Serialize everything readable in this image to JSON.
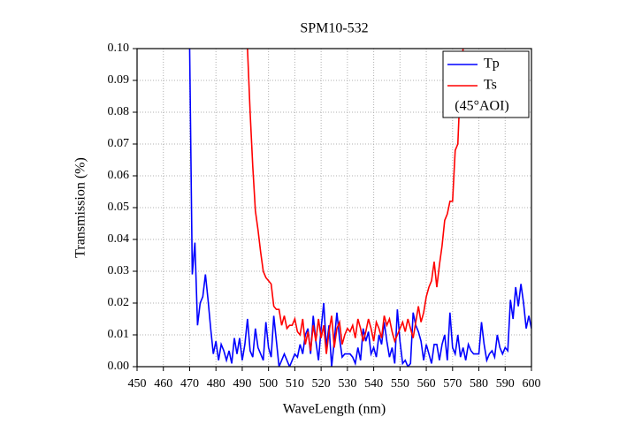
{
  "chart_data": {
    "type": "line",
    "title": "SPM10-532",
    "x_label": "WaveLength (nm)",
    "y_label": "Transmission (%)",
    "annotation": "(45°AOI)",
    "xlim": [
      450,
      600
    ],
    "xticks": [
      450,
      460,
      470,
      480,
      490,
      500,
      510,
      520,
      530,
      540,
      550,
      560,
      570,
      580,
      590,
      600
    ],
    "ylim": [
      0,
      0.1
    ],
    "yticks": [
      {
        "value": 0,
        "label": "0.00"
      },
      {
        "value": 0.01,
        "label": "0.01"
      },
      {
        "value": 0.02,
        "label": "0.02"
      },
      {
        "value": 0.03,
        "label": "0.03"
      },
      {
        "value": 0.04,
        "label": "0.04"
      },
      {
        "value": 0.05,
        "label": "0.05"
      },
      {
        "value": 0.06,
        "label": "0.06"
      },
      {
        "value": 0.07,
        "label": "0.07"
      },
      {
        "value": 0.08,
        "label": "0.08"
      },
      {
        "value": 0.09,
        "label": "0.09"
      },
      {
        "value": 0.1,
        "label": "0.10"
      }
    ],
    "grid": true,
    "legend": "top-right",
    "series": [
      {
        "name": "Tp",
        "color": "#0000ff",
        "x": [
          470,
          471,
          472,
          473,
          474,
          475,
          476,
          477,
          478,
          479,
          480,
          481,
          482,
          483,
          484,
          485,
          486,
          487,
          488,
          489,
          490,
          491,
          492,
          493,
          494,
          495,
          496,
          497,
          498,
          499,
          500,
          501,
          502,
          503,
          504,
          505,
          506,
          507,
          508,
          509,
          510,
          511,
          512,
          513,
          514,
          515,
          516,
          517,
          518,
          519,
          520,
          521,
          522,
          523,
          524,
          525,
          526,
          527,
          528,
          529,
          530,
          531,
          532,
          533,
          534,
          535,
          536,
          537,
          538,
          539,
          540,
          541,
          542,
          543,
          544,
          545,
          546,
          547,
          548,
          549,
          550,
          551,
          552,
          553,
          554,
          555,
          556,
          557,
          558,
          559,
          560,
          561,
          562,
          563,
          564,
          565,
          566,
          567,
          568,
          569,
          570,
          571,
          572,
          573,
          574,
          575,
          576,
          577,
          578,
          579,
          580,
          581,
          582,
          583,
          584,
          585,
          586,
          587,
          588,
          589,
          590,
          591,
          592,
          593,
          594,
          595,
          596,
          597,
          598,
          599,
          600
        ],
        "values": [
          0.1,
          0.029,
          0.039,
          0.013,
          0.02,
          0.022,
          0.029,
          0.021,
          0.012,
          0.004,
          0.008,
          0.002,
          0.007,
          0.005,
          0.002,
          0.005,
          0.001,
          0.009,
          0.004,
          0.009,
          0.002,
          0.007,
          0.015,
          0.005,
          0.003,
          0.012,
          0.006,
          0.004,
          0.002,
          0.014,
          0.006,
          0.003,
          0.016,
          0.008,
          0,
          0.002,
          0.004,
          0.002,
          0,
          0.002,
          0.004,
          0.003,
          0.007,
          0.004,
          0.01,
          0.012,
          0.004,
          0.016,
          0.008,
          0.002,
          0.012,
          0.02,
          0.006,
          0.013,
          0,
          0.008,
          0.017,
          0.009,
          0.003,
          0.004,
          0.004,
          0.004,
          0.003,
          0.001,
          0.006,
          0.002,
          0.012,
          0.008,
          0.011,
          0.004,
          0.006,
          0.003,
          0.01,
          0.007,
          0.014,
          0.008,
          0.003,
          0.006,
          0.001,
          0.018,
          0.008,
          0.001,
          0.002,
          0,
          0.001,
          0.017,
          0.013,
          0.011,
          0.008,
          0.002,
          0.007,
          0.004,
          0.001,
          0.007,
          0.007,
          0.002,
          0.007,
          0.01,
          0.002,
          0.017,
          0.006,
          0.004,
          0.01,
          0.003,
          0.006,
          0.002,
          0.007,
          0.005,
          0.004,
          0.004,
          0.004,
          0.014,
          0.007,
          0.002,
          0.004,
          0.005,
          0.003,
          0.01,
          0.006,
          0.004,
          0.006,
          0.005,
          0.021,
          0.015,
          0.025,
          0.019,
          0.026,
          0.02,
          0.012,
          0.016,
          0.012
        ]
      },
      {
        "name": "Ts",
        "color": "#ff0000",
        "x": [
          492,
          493,
          494,
          495,
          496,
          497,
          498,
          499,
          500,
          501,
          502,
          503,
          504,
          505,
          506,
          507,
          508,
          509,
          510,
          511,
          512,
          513,
          514,
          515,
          516,
          517,
          518,
          519,
          520,
          521,
          522,
          523,
          524,
          525,
          526,
          527,
          528,
          529,
          530,
          531,
          532,
          533,
          534,
          535,
          536,
          537,
          538,
          539,
          540,
          541,
          542,
          543,
          544,
          545,
          546,
          547,
          548,
          549,
          550,
          551,
          552,
          553,
          554,
          555,
          556,
          557,
          558,
          559,
          560,
          561,
          562,
          563,
          564,
          565,
          566,
          567,
          568,
          569,
          570,
          571,
          572,
          573,
          574
        ],
        "values": [
          0.1,
          0.08,
          0.063,
          0.049,
          0.043,
          0.036,
          0.03,
          0.028,
          0.027,
          0.026,
          0.019,
          0.018,
          0.018,
          0.013,
          0.016,
          0.012,
          0.013,
          0.013,
          0.015,
          0.011,
          0.01,
          0.015,
          0.007,
          0.011,
          0.005,
          0.013,
          0.008,
          0.015,
          0.009,
          0.013,
          0.004,
          0.011,
          0.016,
          0.006,
          0.012,
          0.014,
          0.007,
          0.01,
          0.012,
          0.011,
          0.013,
          0.009,
          0.015,
          0.012,
          0.008,
          0.011,
          0.015,
          0.012,
          0.008,
          0.014,
          0.012,
          0.009,
          0.016,
          0.013,
          0.015,
          0.011,
          0.008,
          0.01,
          0.012,
          0.014,
          0.011,
          0.015,
          0.012,
          0.009,
          0.014,
          0.019,
          0.014,
          0.017,
          0.022,
          0.025,
          0.027,
          0.033,
          0.025,
          0.032,
          0.038,
          0.046,
          0.048,
          0.052,
          0.052,
          0.068,
          0.07,
          0.09,
          0.1
        ]
      }
    ]
  }
}
